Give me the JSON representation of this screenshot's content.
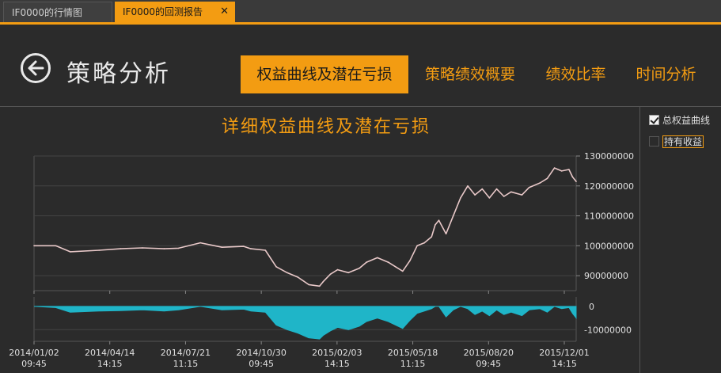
{
  "tabs": [
    {
      "label": "IF0000的行情图",
      "active": false
    },
    {
      "label": "IF0000的回测报告",
      "active": true,
      "close": "✕"
    }
  ],
  "header": {
    "back_icon": "back-arrow-circle-icon",
    "title": "策略分析",
    "nav": [
      {
        "label": "权益曲线及潜在亏损",
        "active": true
      },
      {
        "label": "策略绩效概要",
        "active": false
      },
      {
        "label": "绩效比率",
        "active": false
      },
      {
        "label": "时间分析",
        "active": false
      }
    ]
  },
  "legend": [
    {
      "label": "总权益曲线",
      "checked": true
    },
    {
      "label": "持有收益",
      "checked": false
    }
  ],
  "colors": {
    "accent": "#f39c12",
    "equity_line": "#e8c8c8",
    "drawdown_fill": "#1fb5c8",
    "grid": "#555555"
  },
  "chart_data": {
    "type": "line",
    "title": "详细权益曲线及潜在亏损",
    "x_ticks": [
      [
        "2014/01/02",
        "09:45"
      ],
      [
        "2014/04/14",
        "14:15"
      ],
      [
        "2014/07/21",
        "11:15"
      ],
      [
        "2014/10/30",
        "09:45"
      ],
      [
        "2015/02/03",
        "14:15"
      ],
      [
        "2015/05/18",
        "11:15"
      ],
      [
        "2015/08/20",
        "09:45"
      ],
      [
        "2015/12/01",
        "14:15"
      ]
    ],
    "equity": {
      "name": "总权益曲线",
      "ylim": [
        85000000,
        130000000
      ],
      "y_ticks": [
        {
          "value": 90000000,
          "label": "90000000"
        },
        {
          "value": 100000000,
          "label": "100000000"
        },
        {
          "value": 110000000,
          "label": "110000000"
        },
        {
          "value": 120000000,
          "label": "120000000"
        },
        {
          "value": 130000000,
          "label": "130000000"
        }
      ],
      "x": [
        0,
        0.3,
        0.5,
        0.9,
        1.2,
        1.5,
        1.8,
        2.0,
        2.3,
        2.6,
        2.9,
        3.0,
        3.2,
        3.35,
        3.5,
        3.65,
        3.8,
        3.95,
        4.0,
        4.1,
        4.2,
        4.35,
        4.5,
        4.6,
        4.75,
        4.9,
        5.0,
        5.1,
        5.2,
        5.3,
        5.4,
        5.5,
        5.55,
        5.6,
        5.7,
        5.8,
        5.9,
        6.0,
        6.1,
        6.2,
        6.3,
        6.4,
        6.5,
        6.6,
        6.75,
        6.85,
        7.0,
        7.1,
        7.2,
        7.3,
        7.4,
        7.45,
        7.5
      ],
      "y": [
        100000000,
        100000000,
        98000000,
        98500000,
        99000000,
        99300000,
        99000000,
        99200000,
        101000000,
        99500000,
        99800000,
        99000000,
        98500000,
        93000000,
        91000000,
        89500000,
        87000000,
        86500000,
        88000000,
        90500000,
        92000000,
        91000000,
        92500000,
        94500000,
        96000000,
        94500000,
        93000000,
        91500000,
        95000000,
        100000000,
        101000000,
        103000000,
        107000000,
        108500000,
        104000000,
        110000000,
        116000000,
        120000000,
        117000000,
        119000000,
        116000000,
        119000000,
        116500000,
        118000000,
        117000000,
        119500000,
        121000000,
        122500000,
        126000000,
        125000000,
        125500000,
        123000000,
        121500000
      ]
    },
    "drawdown": {
      "name": "潜在亏损",
      "ylim": [
        -15000000,
        2000000
      ],
      "y_ticks": [
        {
          "value": 0,
          "label": "0"
        },
        {
          "value": -10000000,
          "label": "-10000000"
        }
      ],
      "x": [
        0,
        0.3,
        0.5,
        0.9,
        1.2,
        1.5,
        1.8,
        2.0,
        2.3,
        2.6,
        2.9,
        3.0,
        3.2,
        3.35,
        3.5,
        3.65,
        3.8,
        3.95,
        4.0,
        4.1,
        4.2,
        4.35,
        4.5,
        4.6,
        4.75,
        4.9,
        5.0,
        5.1,
        5.2,
        5.3,
        5.4,
        5.5,
        5.55,
        5.6,
        5.7,
        5.8,
        5.9,
        6.0,
        6.1,
        6.2,
        6.3,
        6.4,
        6.5,
        6.6,
        6.75,
        6.85,
        7.0,
        7.1,
        7.2,
        7.3,
        7.4,
        7.45,
        7.5
      ],
      "y": [
        0,
        -500000,
        -2500000,
        -2000000,
        -1800000,
        -1500000,
        -2000000,
        -1500000,
        0,
        -1500000,
        -1200000,
        -2000000,
        -2500000,
        -8000000,
        -10000000,
        -11500000,
        -13500000,
        -14000000,
        -12500000,
        -10500000,
        -9000000,
        -10000000,
        -8500000,
        -6500000,
        -5000000,
        -6500000,
        -8000000,
        -9500000,
        -6000000,
        -3000000,
        -2000000,
        -1000000,
        0,
        0,
        -4500000,
        -1500000,
        0,
        -1000000,
        -3500000,
        -2000000,
        -4000000,
        -1500000,
        -3500000,
        -2500000,
        -4000000,
        -1500000,
        -1000000,
        -2500000,
        0,
        -1000000,
        -500000,
        -3000000,
        -5000000
      ]
    }
  }
}
